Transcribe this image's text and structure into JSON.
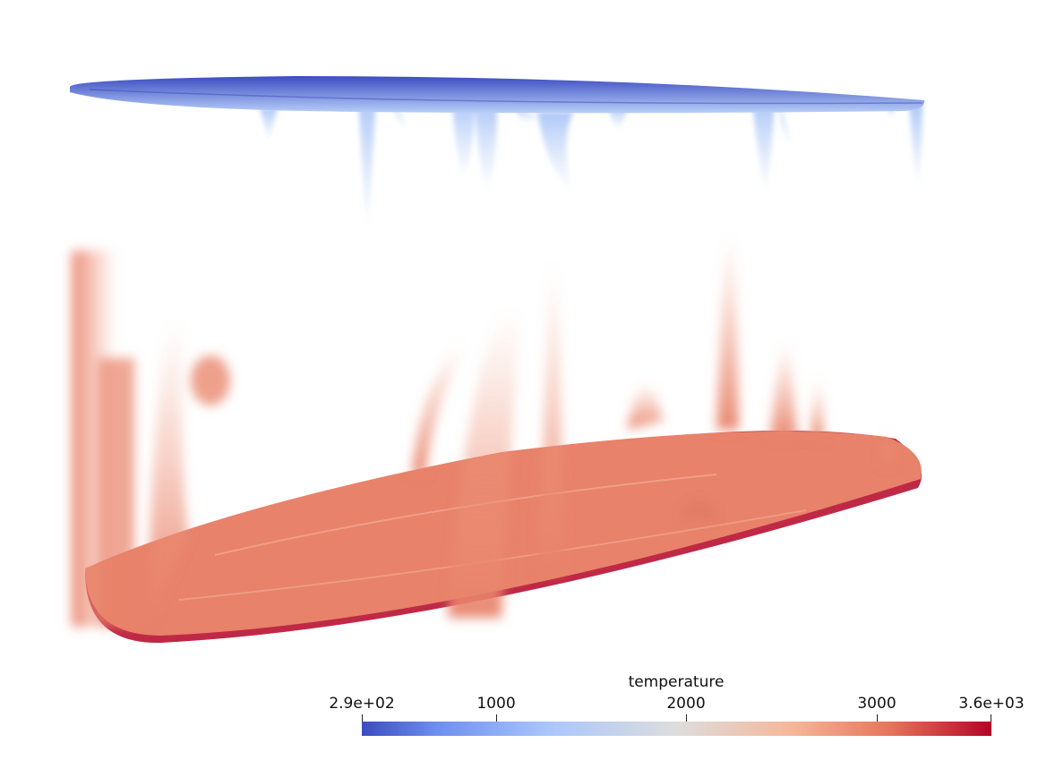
{
  "colorbar": {
    "title": "temperature",
    "ticks": [
      "2.9e+02",
      "1000",
      "2000",
      "3000",
      "3.6e+03"
    ],
    "min": 290,
    "max": 3600,
    "colormap": [
      "#3b4cc0",
      "#aac7fd",
      "#dddddd",
      "#f6b89a",
      "#b40426"
    ]
  },
  "colors": {
    "cold": "#3b4cc0",
    "cold_light": "#b9d0f9",
    "hot": "#e8826a",
    "hot_edge": "#b40426"
  }
}
